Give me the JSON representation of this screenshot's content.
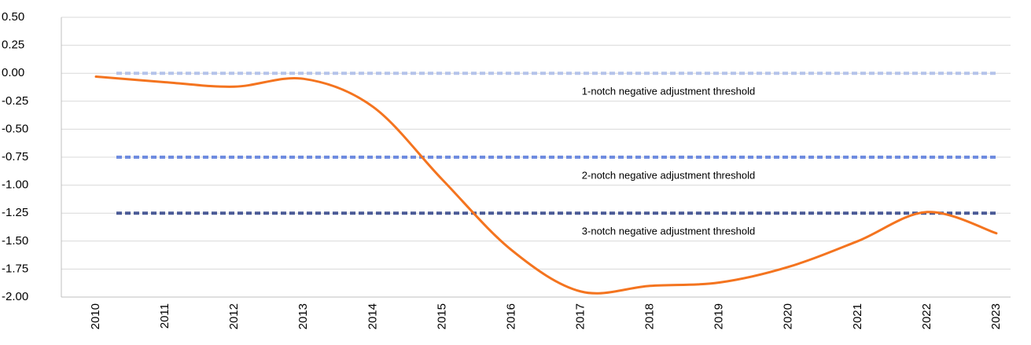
{
  "chart_data": {
    "type": "line",
    "categories": [
      "2010",
      "2011",
      "2012",
      "2013",
      "2014",
      "2015",
      "2016",
      "2017",
      "2018",
      "2019",
      "2020",
      "2021",
      "2022",
      "2023"
    ],
    "series": [
      {
        "color": "#f4741f",
        "values": [
          -0.03,
          -0.08,
          -0.12,
          -0.05,
          -0.3,
          -0.95,
          -1.58,
          -1.95,
          -1.9,
          -1.87,
          -1.73,
          -1.5,
          -1.24,
          -1.43
        ]
      }
    ],
    "thresholds": [
      {
        "value": 0,
        "label": "1-notch  negative  adjustment  threshold",
        "color": "#b4c3ea"
      },
      {
        "value": -0.75,
        "label": "2-notch  negative  adjustment  threshold",
        "color": "#6f8ce0"
      },
      {
        "value": -1.25,
        "label": "3-notch  negative  adjustment  threshold",
        "color": "#4a5a96"
      }
    ],
    "ylim": [
      -2,
      0.5
    ],
    "yticks": [
      {
        "value": 0.5,
        "label": "0.50"
      },
      {
        "value": 0.25,
        "label": "0.25"
      },
      {
        "value": 0,
        "label": "0.00"
      },
      {
        "value": -0.25,
        "label": "-0.25"
      },
      {
        "value": -0.5,
        "label": "-0.50"
      },
      {
        "value": -0.75,
        "label": "-0.75"
      },
      {
        "value": -1,
        "label": "-1.00"
      },
      {
        "value": -1.25,
        "label": "-1.25"
      },
      {
        "value": -1.5,
        "label": "-1.50"
      },
      {
        "value": -1.75,
        "label": "-1.75"
      },
      {
        "value": -2,
        "label": "-2.00"
      }
    ],
    "grid": true
  }
}
